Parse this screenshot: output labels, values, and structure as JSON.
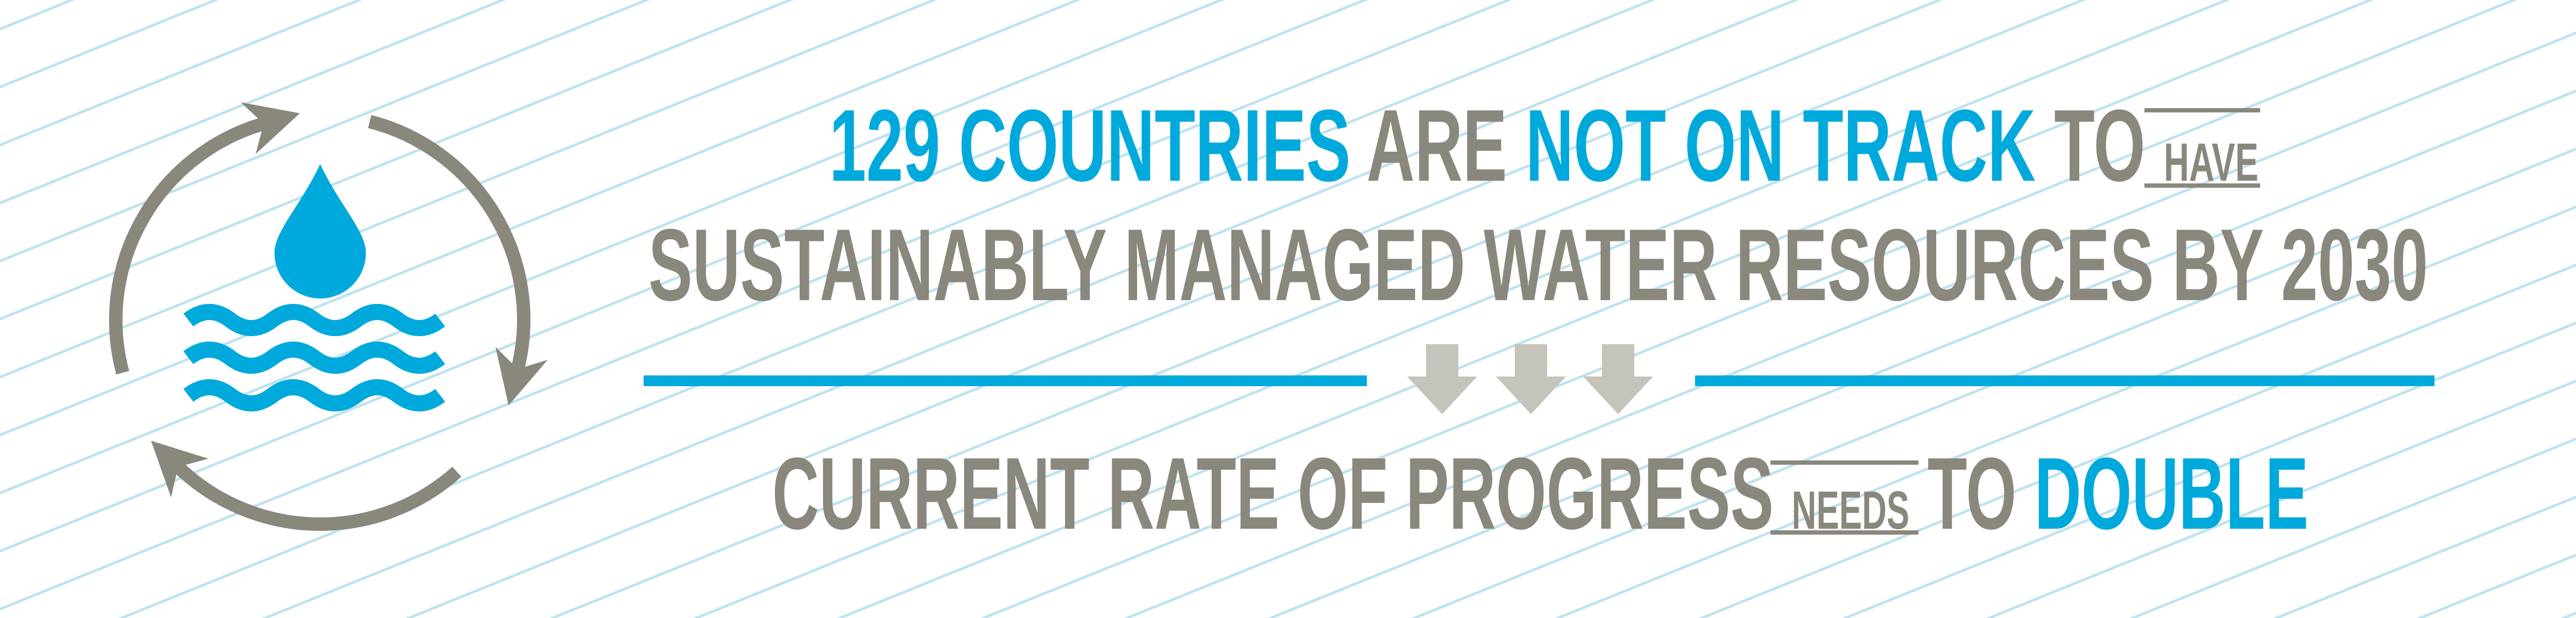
{
  "headline": {
    "line1": {
      "part1": "129 COUNTRIES",
      "part2": "ARE",
      "part3": "NOT ON TRACK",
      "part4": "TO",
      "small": "HAVE"
    },
    "line2": "SUSTAINABLY MANAGED WATER RESOURCES BY 2030",
    "line3": {
      "part1": "CURRENT RATE OF PROGRESS",
      "small": "NEEDS",
      "part2": "TO",
      "part3": "DOUBLE"
    }
  }
}
